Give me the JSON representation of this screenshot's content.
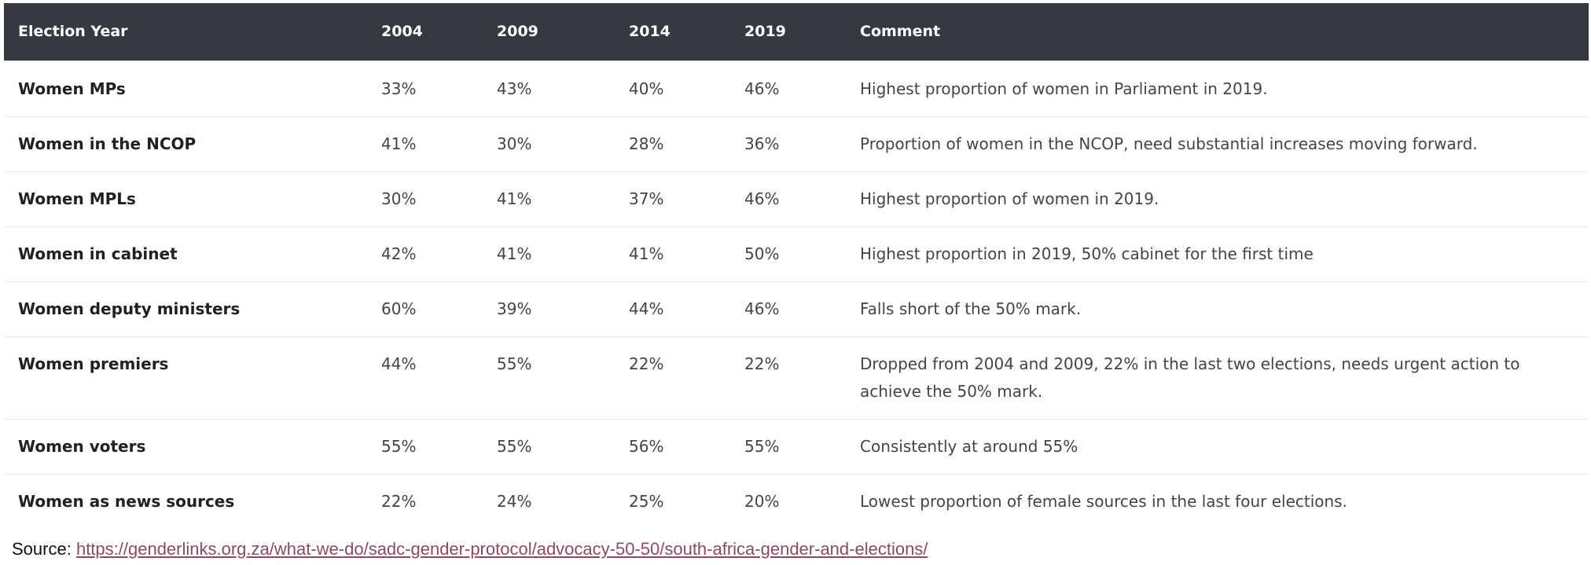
{
  "table": {
    "headers": [
      "Election Year",
      "2004",
      "2009",
      "2014",
      "2019",
      "Comment"
    ],
    "rows": [
      {
        "label": "Women MPs",
        "v2004": "33%",
        "v2009": "43%",
        "v2014": "40%",
        "v2019": "46%",
        "comment": "Highest proportion of women in Parliament in 2019."
      },
      {
        "label": "Women in the NCOP",
        "v2004": "41%",
        "v2009": "30%",
        "v2014": "28%",
        "v2019": "36%",
        "comment": "Proportion of women in the NCOP, need substantial increases moving forward."
      },
      {
        "label": "Women MPLs",
        "v2004": "30%",
        "v2009": "41%",
        "v2014": "37%",
        "v2019": "46%",
        "comment": "Highest proportion of women in 2019."
      },
      {
        "label": "Women in cabinet",
        "v2004": "42%",
        "v2009": "41%",
        "v2014": "41%",
        "v2019": "50%",
        "comment": "Highest proportion in 2019, 50% cabinet for the first time"
      },
      {
        "label": "Women deputy ministers",
        "v2004": "60%",
        "v2009": "39%",
        "v2014": "44%",
        "v2019": "46%",
        "comment": "Falls short of the 50% mark."
      },
      {
        "label": "Women premiers",
        "v2004": "44%",
        "v2009": "55%",
        "v2014": "22%",
        "v2019": "22%",
        "comment": "Dropped from 2004 and 2009, 22% in the last two elections, needs urgent action to achieve the 50% mark."
      },
      {
        "label": "Women voters",
        "v2004": "55%",
        "v2009": "55%",
        "v2014": "56%",
        "v2019": "55%",
        "comment": "Consistently at around 55%"
      },
      {
        "label": "Women as news sources",
        "v2004": "22%",
        "v2009": "24%",
        "v2014": "25%",
        "v2019": "20%",
        "comment": "Lowest proportion of female sources in the last four elections."
      }
    ]
  },
  "source": {
    "label": "Source:",
    "url_text": "https://genderlinks.org.za/what-we-do/sadc-gender-protocol/advocacy-50-50/south-africa-gender-and-elections/"
  },
  "colors": {
    "header_bg": "#343a40",
    "header_text": "#ffffff",
    "link": "#8a4a63"
  }
}
